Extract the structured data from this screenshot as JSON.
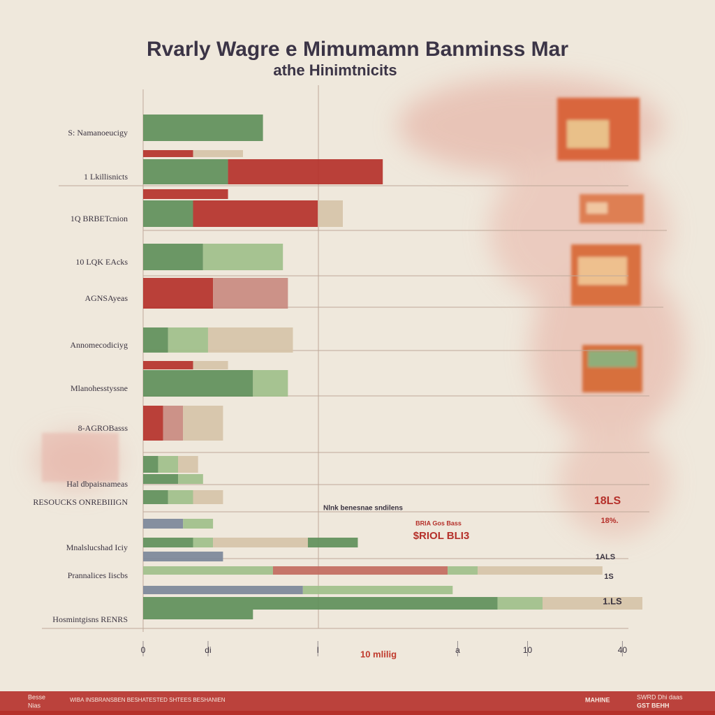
{
  "chart_data": {
    "type": "bar",
    "orientation": "horizontal",
    "title": "Rvarly Wagre e Mimumamn Banminss Mar",
    "subtitle": "athe Hinimtnicits",
    "xlim": [
      0,
      100
    ],
    "xticks": [
      0,
      {
        "value": 13,
        "label": "di"
      },
      {
        "value": 35,
        "label": "I"
      },
      {
        "value": 63,
        "label": "a"
      },
      {
        "value": 77,
        "label": "10"
      },
      {
        "value": 96,
        "label": "40"
      }
    ],
    "bars": [
      {
        "category": "S: Namanoeucigy",
        "segments": [
          {
            "color": "#5f8f5a",
            "value": 24
          }
        ]
      },
      {
        "category": null,
        "segments": [
          {
            "color": "#b5312a",
            "value": 10
          },
          {
            "color": "#d6c3a8",
            "value": 10
          }
        ]
      },
      {
        "category": "1 Lkillisnicts",
        "segments": [
          {
            "color": "#5f8f5a",
            "value": 17
          },
          {
            "color": "#b5312a",
            "value": 31
          }
        ]
      },
      {
        "category": null,
        "segments": [
          {
            "color": "#b5312a",
            "value": 17
          }
        ]
      },
      {
        "category": "1Q BRBETcnion",
        "segments": [
          {
            "color": "#5f8f5a",
            "value": 10
          },
          {
            "color": "#b5312a",
            "value": 25
          },
          {
            "color": "#d6c3a8",
            "value": 5
          }
        ]
      },
      {
        "category": "10 LQK EAcks",
        "segments": [
          {
            "color": "#5f8f5a",
            "value": 12
          },
          {
            "color": "#9fbf8a",
            "value": 16
          }
        ]
      },
      {
        "category": "AGNSAyeas",
        "segments": [
          {
            "color": "#b5312a",
            "value": 14
          },
          {
            "color": "#c98a80",
            "value": 15
          }
        ]
      },
      {
        "category": "Annomecodiciyg",
        "segments": [
          {
            "color": "#5f8f5a",
            "value": 5
          },
          {
            "color": "#9fbf8a",
            "value": 8
          },
          {
            "color": "#d6c3a8",
            "value": 17
          }
        ]
      },
      {
        "category": null,
        "segments": [
          {
            "color": "#b5312a",
            "value": 10
          },
          {
            "color": "#d6c3a8",
            "value": 7
          }
        ]
      },
      {
        "category": "Mlanohesstyssne",
        "segments": [
          {
            "color": "#5f8f5a",
            "value": 22
          },
          {
            "color": "#9fbf8a",
            "value": 7
          }
        ]
      },
      {
        "category": "8-AGROBasss",
        "segments": [
          {
            "color": "#b5312a",
            "value": 4
          },
          {
            "color": "#c98a80",
            "value": 4
          },
          {
            "color": "#d6c3a8",
            "value": 8
          }
        ]
      },
      {
        "category": null,
        "segments": [
          {
            "color": "#5f8f5a",
            "value": 3
          },
          {
            "color": "#9fbf8a",
            "value": 4
          },
          {
            "color": "#d6c3a8",
            "value": 4
          }
        ]
      },
      {
        "category": "Hal dbpaisnameas",
        "segments": [
          {
            "color": "#5f8f5a",
            "value": 7
          },
          {
            "color": "#9fbf8a",
            "value": 5
          }
        ]
      },
      {
        "category": "RESOUCKS ONREBIIIGN",
        "segments": [
          {
            "color": "#5f8f5a",
            "value": 5
          },
          {
            "color": "#9fbf8a",
            "value": 5
          },
          {
            "color": "#d6c3a8",
            "value": 6
          }
        ]
      },
      {
        "category": null,
        "segments": [
          {
            "color": "#7c8799",
            "value": 8
          },
          {
            "color": "#9fbf8a",
            "value": 6
          }
        ]
      },
      {
        "category": "Mnalslucshad Iciy",
        "segments": [
          {
            "color": "#5f8f5a",
            "value": 10
          },
          {
            "color": "#9fbf8a",
            "value": 4
          },
          {
            "color": "#d6c3a8",
            "value": 19
          },
          {
            "color": "#5f8f5a",
            "value": 10
          }
        ]
      },
      {
        "category": null,
        "segments": [
          {
            "color": "#7c8799",
            "value": 16
          }
        ]
      },
      {
        "category": "Prannalices Iiscbs",
        "segments": [
          {
            "color": "#9fbf8a",
            "value": 26
          },
          {
            "color": "#c26a5e",
            "value": 35
          },
          {
            "color": "#9fbf8a",
            "value": 6
          },
          {
            "color": "#d6c3a8",
            "value": 25
          }
        ]
      },
      {
        "category": null,
        "segments": [
          {
            "color": "#7c8799",
            "value": 32
          },
          {
            "color": "#9fbf8a",
            "value": 30
          }
        ]
      },
      {
        "category": null,
        "segments": [
          {
            "color": "#5f8f5a",
            "value": 71
          },
          {
            "color": "#9fbf8a",
            "value": 9
          },
          {
            "color": "#d6c3a8",
            "value": 20
          }
        ]
      },
      {
        "category": "Hosmintgisns RENRS",
        "segments": [
          {
            "color": "#5f8f5a",
            "value": 22
          }
        ]
      }
    ],
    "annotations": [
      "Nlnk benesnae sndilens",
      "BRIA Gos Bass",
      "$RIOL BLI3",
      "18LS",
      "18%.",
      "1ALS",
      "1S",
      "1.LS",
      "10 mlilig"
    ]
  },
  "footer": {
    "left": [
      "Besse",
      "Nias"
    ],
    "middle": "WIBA INSBRANSBEN BESHATESTED SHTEES BESHANIEN",
    "right": [
      "MAHINE",
      "SWRD Dhi daas",
      "GST BEHH"
    ]
  }
}
